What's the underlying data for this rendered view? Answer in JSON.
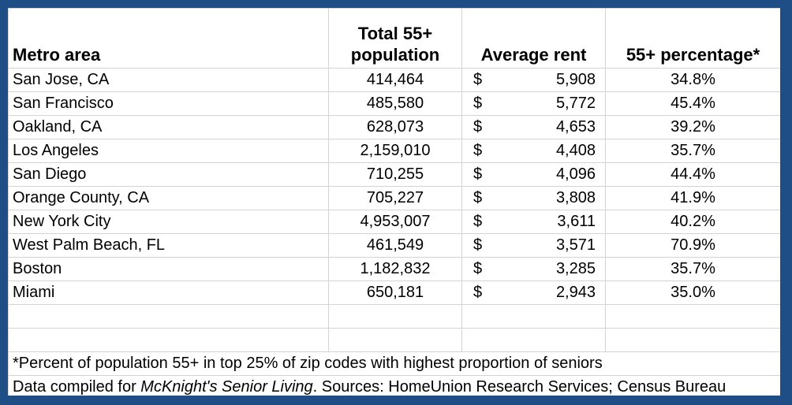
{
  "table": {
    "headers": {
      "metro": "Metro area",
      "population_line1": "Total 55+",
      "population_line2": "population",
      "rent": "Average rent",
      "percentage": "55+ percentage*"
    },
    "currency_symbol": "$",
    "rows": [
      {
        "metro": "San Jose, CA",
        "population": "414,464",
        "rent": "5,908",
        "percentage": "34.8%"
      },
      {
        "metro": "San Francisco",
        "population": "485,580",
        "rent": "5,772",
        "percentage": "45.4%"
      },
      {
        "metro": "Oakland, CA",
        "population": "628,073",
        "rent": "4,653",
        "percentage": "39.2%"
      },
      {
        "metro": "Los Angeles",
        "population": "2,159,010",
        "rent": "4,408",
        "percentage": "35.7%"
      },
      {
        "metro": "San Diego",
        "population": "710,255",
        "rent": "4,096",
        "percentage": "44.4%"
      },
      {
        "metro": "Orange County, CA",
        "population": "705,227",
        "rent": "3,808",
        "percentage": "41.9%"
      },
      {
        "metro": "New York City",
        "population": "4,953,007",
        "rent": "3,611",
        "percentage": "40.2%"
      },
      {
        "metro": "West Palm Beach, FL",
        "population": "461,549",
        "rent": "3,571",
        "percentage": "70.9%"
      },
      {
        "metro": "Boston",
        "population": "1,182,832",
        "rent": "3,285",
        "percentage": "35.7%"
      },
      {
        "metro": "Miami",
        "population": "650,181",
        "rent": "2,943",
        "percentage": "35.0%"
      }
    ]
  },
  "notes": {
    "footnote": "*Percent of population 55+ in top 25% of zip codes with highest proportion of seniors",
    "credit_prefix": "Data compiled for ",
    "credit_publication": "McKnight's Senior Living",
    "credit_suffix": ". Sources: HomeUnion Research Services; Census Bureau"
  },
  "colors": {
    "frame": "#1f4e86",
    "gridline": "#d4d4d4"
  }
}
